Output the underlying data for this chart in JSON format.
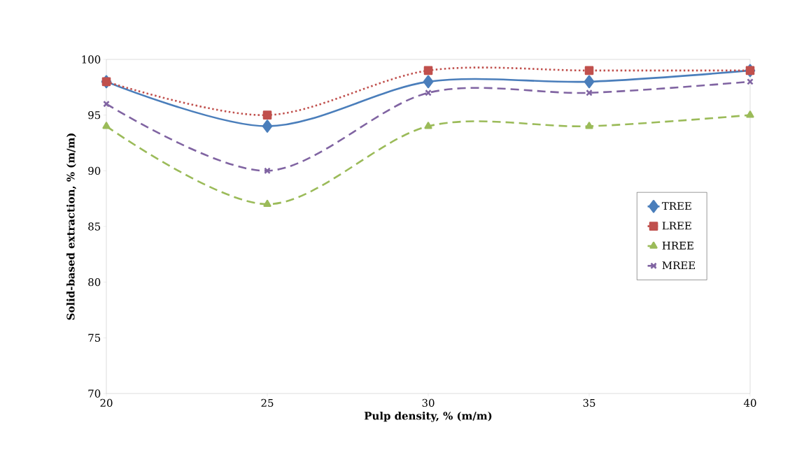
{
  "chart_data": {
    "type": "line",
    "xlabel": "Pulp density, % (m/m)",
    "ylabel": "Solid-based extraction, % (m/m)",
    "x": [
      20,
      25,
      30,
      35,
      40
    ],
    "series": [
      {
        "name": "TREE",
        "color": "#4a7ebb",
        "marker": "diamond",
        "line_style": "solid",
        "values": [
          98,
          94,
          98,
          98,
          99
        ]
      },
      {
        "name": "LREE",
        "color": "#c0504d",
        "marker": "square",
        "line_style": "dotted",
        "values": [
          98,
          95,
          99,
          99,
          99
        ]
      },
      {
        "name": "HREE",
        "color": "#9bbb59",
        "marker": "triangle",
        "line_style": "dashed",
        "values": [
          94,
          87,
          94,
          94,
          95
        ]
      },
      {
        "name": "MREE",
        "color": "#8064a2",
        "marker": "cross",
        "line_style": "dashed",
        "values": [
          96,
          90,
          97,
          97,
          98
        ]
      }
    ],
    "xlim": [
      20,
      40
    ],
    "xticks": [
      20,
      25,
      30,
      35,
      40
    ],
    "ylim": [
      70,
      100
    ],
    "yticks": [
      70,
      75,
      80,
      85,
      90,
      95,
      100
    ],
    "grid": false,
    "legend": "right"
  }
}
